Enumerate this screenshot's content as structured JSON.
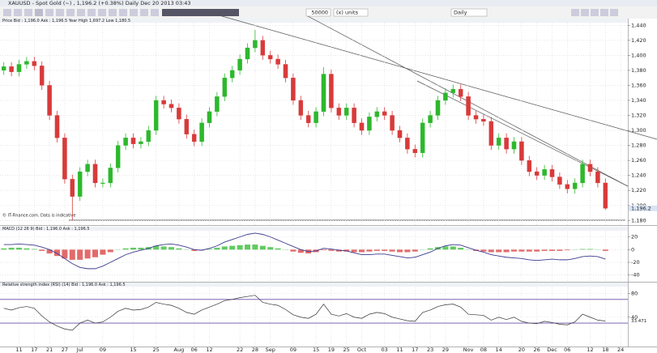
{
  "window": {
    "title": "XAUUSD - Spot Gold (~) , 1,196.2 (+0.38%)   Daily  Dec 20 2013 03:43"
  },
  "toolbar": {
    "quantity": "50000",
    "units": "(x) units",
    "period": "Daily"
  },
  "price_header": "Price   Bid : 1,196.0  Ask : 1,196.5  Year High 1,697.2  Low 1,180.5",
  "source_note": "© IT-Finance.com. Data is indicative",
  "last_price_label": "1,196.2",
  "chart_data": [
    {
      "type": "candlestick",
      "categories": [
        null,
        null,
        "11",
        null,
        "17",
        null,
        "21",
        null,
        "27",
        null,
        "Jul",
        null,
        null,
        "09",
        null,
        null,
        null,
        "15",
        null,
        null,
        "25",
        null,
        null,
        "Aug",
        null,
        "06",
        null,
        "12",
        null,
        null,
        null,
        "22",
        null,
        "28",
        null,
        "Sep",
        null,
        null,
        "09",
        null,
        null,
        "15",
        null,
        "19",
        null,
        "25",
        null,
        "Oct",
        null,
        null,
        "03",
        null,
        "11",
        null,
        "17",
        null,
        "23",
        null,
        "29",
        null,
        null,
        "Nov",
        null,
        "08",
        null,
        "14",
        null,
        null,
        "20",
        null,
        "26",
        null,
        "Dec",
        null,
        "06",
        null,
        null,
        "12",
        null,
        "18",
        null,
        "24"
      ],
      "open": [
        1380,
        1385,
        1378,
        1388,
        1392,
        1386,
        1360,
        1320,
        1290,
        1235,
        1212,
        1245,
        1255,
        1230,
        1230,
        1250,
        1280,
        1290,
        1282,
        1285,
        1300,
        1340,
        1335,
        1330,
        1315,
        1295,
        1285,
        1310,
        1325,
        1345,
        1370,
        1380,
        1395,
        1410,
        1420,
        1400,
        1395,
        1388,
        1370,
        1340,
        1320,
        1310,
        1325,
        1375,
        1330,
        1320,
        1330,
        1310,
        1300,
        1318,
        1325,
        1320,
        1300,
        1290,
        1275,
        1270,
        1310,
        1320,
        1340,
        1350,
        1355,
        1345,
        1320,
        1315,
        1312,
        1280,
        1290,
        1275,
        1285,
        1260,
        1245,
        1240,
        1248,
        1238,
        1228,
        1222,
        1230,
        1255,
        1245,
        1230,
        null,
        null
      ],
      "high": [
        1391,
        1391,
        1394,
        1398,
        1398,
        1392,
        1366,
        1326,
        1296,
        1241,
        1251,
        1261,
        1261,
        1236,
        1256,
        1286,
        1296,
        1296,
        1291,
        1306,
        1346,
        1346,
        1341,
        1336,
        1321,
        1301,
        1316,
        1331,
        1351,
        1376,
        1386,
        1401,
        1416,
        1434,
        1426,
        1406,
        1401,
        1394,
        1376,
        1346,
        1326,
        1331,
        1384,
        1381,
        1336,
        1336,
        1336,
        1316,
        1324,
        1331,
        1331,
        1326,
        1306,
        1296,
        1281,
        1316,
        1326,
        1346,
        1356,
        1361,
        1361,
        1351,
        1326,
        1321,
        1318,
        1296,
        1296,
        1291,
        1291,
        1266,
        1251,
        1254,
        1254,
        1244,
        1234,
        1236,
        1261,
        1261,
        1251,
        1236,
        null,
        null
      ],
      "low": [
        1374,
        1372,
        1372,
        1382,
        1380,
        1354,
        1314,
        1284,
        1229,
        1180,
        1206,
        1239,
        1224,
        1224,
        1224,
        1244,
        1274,
        1276,
        1276,
        1279,
        1294,
        1329,
        1324,
        1309,
        1289,
        1279,
        1279,
        1304,
        1319,
        1339,
        1364,
        1374,
        1389,
        1404,
        1394,
        1389,
        1382,
        1364,
        1334,
        1314,
        1304,
        1304,
        1319,
        1324,
        1314,
        1314,
        1304,
        1294,
        1294,
        1312,
        1314,
        1294,
        1284,
        1269,
        1264,
        1264,
        1304,
        1314,
        1334,
        1344,
        1339,
        1314,
        1309,
        1306,
        1274,
        1274,
        1269,
        1269,
        1254,
        1239,
        1234,
        1234,
        1232,
        1222,
        1216,
        1216,
        1224,
        1239,
        1224,
        1194,
        null,
        null
      ],
      "close": [
        1385,
        1378,
        1388,
        1392,
        1386,
        1360,
        1320,
        1290,
        1235,
        1212,
        1245,
        1255,
        1230,
        1230,
        1250,
        1280,
        1290,
        1282,
        1285,
        1300,
        1340,
        1335,
        1330,
        1315,
        1295,
        1285,
        1310,
        1325,
        1345,
        1370,
        1380,
        1395,
        1410,
        1420,
        1400,
        1395,
        1388,
        1370,
        1340,
        1320,
        1310,
        1325,
        1375,
        1330,
        1320,
        1330,
        1310,
        1300,
        1318,
        1325,
        1320,
        1300,
        1290,
        1275,
        1270,
        1310,
        1320,
        1340,
        1350,
        1355,
        1345,
        1320,
        1315,
        1312,
        1280,
        1290,
        1275,
        1285,
        1260,
        1245,
        1240,
        1248,
        1238,
        1228,
        1222,
        1230,
        1255,
        1245,
        1230,
        1196.2,
        null,
        null
      ],
      "up_color": "#2db82d",
      "down_color": "#d83a3a",
      "ylim": [
        1176,
        1450
      ],
      "yticks": [
        {
          "value": 1180,
          "label": "1,180"
        },
        {
          "value": 1200,
          "label": "1,200"
        },
        {
          "value": 1220,
          "label": "1,220"
        },
        {
          "value": 1240,
          "label": "1,240"
        },
        {
          "value": 1260,
          "label": "1,260"
        },
        {
          "value": 1280,
          "label": "1,280"
        },
        {
          "value": 1300,
          "label": "1,300"
        },
        {
          "value": 1320,
          "label": "1,320"
        },
        {
          "value": 1340,
          "label": "1,340"
        },
        {
          "value": 1360,
          "label": "1,360"
        },
        {
          "value": 1380,
          "label": "1,380"
        },
        {
          "value": 1400,
          "label": "1,400"
        },
        {
          "value": 1420,
          "label": "1,420"
        },
        {
          "value": 1440,
          "label": "1,440"
        }
      ],
      "grid": true
    },
    {
      "type": "macd",
      "title": "MACD (12 26 9)   Bid : 1,196.0  Ask : 1,196.5",
      "histogram": [
        2,
        3,
        3,
        2,
        1,
        -2,
        -6,
        -10,
        -14,
        -16,
        -16,
        -14,
        -12,
        -8,
        -4,
        0,
        2,
        3,
        3,
        4,
        6,
        5,
        4,
        2,
        0,
        -2,
        -1,
        1,
        3,
        5,
        6,
        7,
        8,
        8,
        6,
        4,
        2,
        0,
        -3,
        -5,
        -6,
        -4,
        -1,
        -2,
        -3,
        -3,
        -4,
        -4,
        -3,
        -2,
        -2,
        -3,
        -4,
        -4,
        -3,
        0,
        2,
        4,
        5,
        5,
        3,
        0,
        -2,
        -3,
        -4,
        -4,
        -4,
        -3,
        -3,
        -3,
        -3,
        -2,
        -2,
        -2,
        -1,
        0,
        1,
        1,
        0,
        -2
      ],
      "values": [
        8,
        8,
        9,
        8,
        7,
        4,
        0,
        -6,
        -14,
        -22,
        -28,
        -30,
        -30,
        -26,
        -20,
        -14,
        -8,
        -4,
        -1,
        2,
        6,
        8,
        9,
        7,
        4,
        0,
        -1,
        2,
        6,
        12,
        16,
        20,
        24,
        26,
        24,
        20,
        15,
        10,
        5,
        0,
        -3,
        -2,
        2,
        1,
        -1,
        -2,
        -5,
        -8,
        -8,
        -7,
        -7,
        -9,
        -11,
        -13,
        -12,
        -8,
        -4,
        2,
        6,
        8,
        7,
        3,
        -1,
        -4,
        -8,
        -10,
        -12,
        -13,
        -14,
        -16,
        -17,
        -16,
        -15,
        -16,
        -16,
        -14,
        -11,
        -10,
        -11,
        -15
      ],
      "line_color": "#3b3b8f",
      "up_color": "#2db82d",
      "down_color": "#d83a3a",
      "ylim": [
        -48,
        31
      ],
      "yticks": [
        20,
        0,
        -20,
        -40
      ],
      "grid": true
    },
    {
      "type": "line",
      "title": "Relative strength index (RSI) (14)   Bid : 1,196.0  Ask : 1,196.5",
      "values": [
        55,
        52,
        56,
        58,
        55,
        42,
        32,
        25,
        20,
        18,
        30,
        35,
        30,
        32,
        40,
        50,
        55,
        52,
        53,
        57,
        65,
        62,
        60,
        55,
        48,
        45,
        52,
        57,
        62,
        68,
        70,
        73,
        75,
        77,
        65,
        62,
        60,
        53,
        44,
        40,
        38,
        45,
        62,
        45,
        42,
        46,
        40,
        38,
        45,
        48,
        46,
        40,
        37,
        34,
        33,
        48,
        52,
        58,
        61,
        62,
        57,
        45,
        44,
        43,
        35,
        40,
        36,
        40,
        33,
        30,
        29,
        33,
        31,
        28,
        27,
        32,
        45,
        40,
        35,
        33.471
      ],
      "color": "#333333",
      "band_color": "#6b4fa8",
      "bands": [
        30,
        70
      ],
      "ylim": [
        0,
        93
      ],
      "yticks": [
        80,
        40
      ],
      "grid": true
    }
  ]
}
